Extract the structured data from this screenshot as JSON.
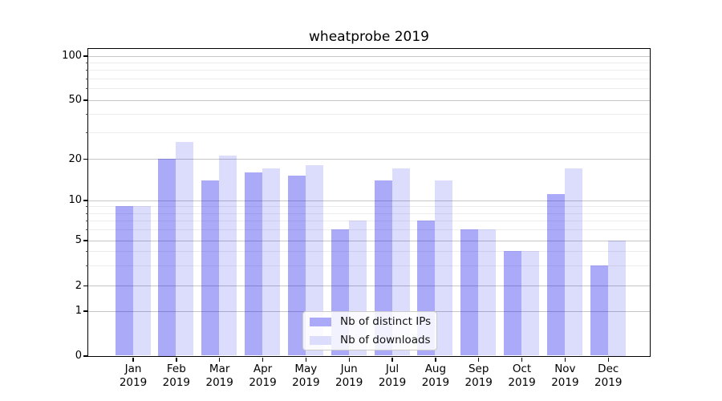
{
  "title": "wheatprobe 2019",
  "chart_data": {
    "type": "bar",
    "title": "wheatprobe 2019",
    "categories": [
      "Jan 2019",
      "Feb 2019",
      "Mar 2019",
      "Apr 2019",
      "May 2019",
      "Jun 2019",
      "Jul 2019",
      "Aug 2019",
      "Sep 2019",
      "Oct 2019",
      "Nov 2019",
      "Dec 2019"
    ],
    "series": [
      {
        "name": "Nb of distinct IPs",
        "color_hex": "#aaaaf8",
        "fill_rgba": "rgba(0,0,234,0.335)",
        "values": [
          9,
          20,
          14,
          16,
          15,
          6,
          14,
          7,
          6,
          4,
          11,
          3
        ]
      },
      {
        "name": "Nb of downloads",
        "color_hex": "#dcdcfc",
        "fill_rgba": "rgba(0,0,233,0.137)",
        "values": [
          9,
          26,
          21,
          17,
          18,
          7,
          17,
          14,
          6,
          4,
          17,
          5
        ]
      }
    ],
    "xlabel": "",
    "ylabel": "",
    "yscale": "log-like (0,1,2,5,10,20,50,100 ticks)",
    "ylim": [
      0,
      112
    ],
    "y_ticks": [
      0,
      1,
      2,
      5,
      10,
      20,
      50,
      100
    ],
    "y_minor_ticks": [
      3,
      4,
      6,
      7,
      8,
      9,
      30,
      40,
      60,
      70,
      80,
      90
    ],
    "grid": true,
    "legend_position": "lower center"
  }
}
